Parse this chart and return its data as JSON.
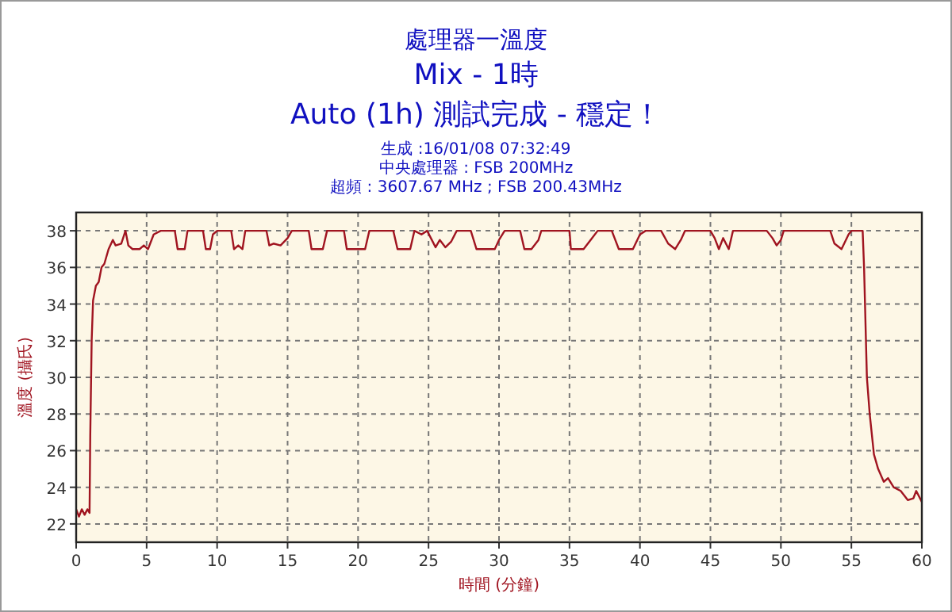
{
  "chart_data": {
    "type": "line",
    "title": "處理器一溫度",
    "subtitle": "Mix - 1時",
    "annotations": [
      "Auto (1h) 測試完成 - 穩定！",
      "生成 :16/01/08 07:32:49",
      "中央處理器 : FSB 200MHz",
      "超頻 : 3607.67 MHz ; FSB 200.43MHz"
    ],
    "xlabel": "時間 (分鐘)",
    "ylabel": "溫度 (攝氏)",
    "xlim": [
      0,
      60
    ],
    "xticks": [
      0,
      5,
      10,
      15,
      20,
      25,
      30,
      35,
      40,
      45,
      50,
      55,
      60
    ],
    "ylim": [
      21,
      39
    ],
    "yticks": [
      22,
      24,
      26,
      28,
      30,
      32,
      34,
      36,
      38
    ],
    "grid": true,
    "marker": "none",
    "line_style": "solid",
    "series": [
      {
        "color": "#a01420",
        "x": [
          0,
          0.2,
          0.4,
          0.6,
          0.8,
          0.95,
          1.0,
          1.1,
          1.2,
          1.4,
          1.6,
          1.8,
          2.0,
          2.3,
          2.6,
          2.8,
          3.2,
          3.5,
          3.7,
          4.0,
          4.5,
          4.8,
          5.1,
          5.5,
          6,
          7,
          7.2,
          7.7,
          7.9,
          9,
          9.2,
          9.5,
          9.7,
          10,
          11,
          11.2,
          11.5,
          11.8,
          12,
          13.5,
          13.7,
          14,
          14.5,
          15,
          15.3,
          16.5,
          16.7,
          17.5,
          17.8,
          19,
          19.2,
          20.5,
          20.8,
          22.5,
          22.8,
          23.7,
          24,
          24.5,
          24.9,
          25.5,
          25.8,
          26.2,
          26.6,
          27,
          28,
          28.4,
          29.7,
          30,
          30.4,
          31.5,
          31.8,
          32.3,
          32.8,
          33,
          35,
          35.1,
          36,
          36.5,
          37,
          38,
          38.5,
          39.5,
          40,
          40.4,
          41.5,
          42,
          42.5,
          42.9,
          43.2,
          45,
          45.3,
          45.6,
          45.9,
          46.3,
          46.6,
          49,
          49.4,
          49.7,
          50,
          50.2,
          53.5,
          53.8,
          54.3,
          54.8,
          55,
          55.8,
          55.9,
          56.1,
          56.3,
          56.6,
          56.9,
          57.3,
          57.6,
          58,
          58.5,
          59,
          59.4,
          59.6,
          60
        ],
        "values": [
          22.8,
          22.4,
          22.8,
          22.5,
          22.8,
          22.6,
          26.8,
          32,
          34.2,
          35,
          35.2,
          36,
          36.2,
          37,
          37.5,
          37.2,
          37.3,
          38,
          37.2,
          37,
          37,
          37.2,
          37,
          37.8,
          38,
          38,
          37,
          37,
          38,
          38,
          37,
          37,
          37.8,
          38,
          38,
          37,
          37.2,
          37,
          38,
          38,
          37.2,
          37.3,
          37.2,
          37.6,
          38,
          38,
          37,
          37,
          38,
          38,
          37,
          37,
          38,
          38,
          37,
          37,
          38,
          37.8,
          38,
          37.1,
          37.5,
          37.1,
          37.4,
          38,
          38,
          37,
          37,
          37.5,
          38,
          38,
          37,
          37,
          37.5,
          38,
          38,
          37,
          37,
          37.5,
          38,
          38,
          37,
          37,
          37.8,
          38,
          38,
          37.3,
          37,
          37.5,
          38,
          38,
          37.6,
          37,
          37.6,
          37,
          38,
          38,
          37.6,
          37.2,
          37.5,
          38,
          38,
          37.3,
          37,
          37.8,
          38,
          38,
          36,
          30,
          28,
          25.8,
          25,
          24.3,
          24.5,
          24,
          23.8,
          23.3,
          23.4,
          23.8,
          23.2
        ]
      }
    ]
  }
}
